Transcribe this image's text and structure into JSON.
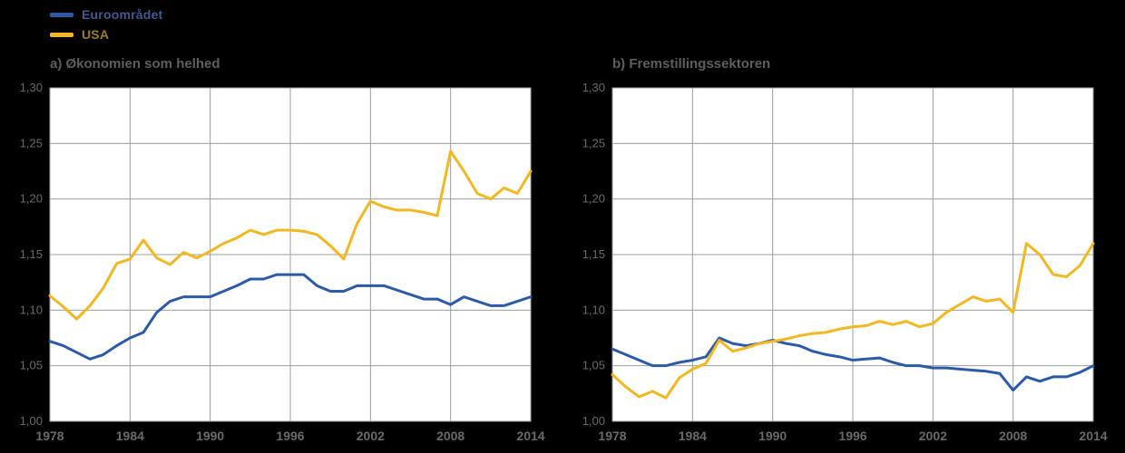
{
  "style": {
    "background": "#000000",
    "plot_bg": "#ffffff",
    "grid_color": "#9c9c9c",
    "tick_color": "#6a6a6a",
    "title_color": "#5e5e5e",
    "line_width": 3
  },
  "legend": {
    "items": [
      {
        "label": "Euroområdet",
        "color": "#2b5aa8",
        "label_color": "#44598c"
      },
      {
        "label": "USA",
        "color": "#f3b71f",
        "label_color": "#9c7f1f"
      }
    ]
  },
  "chart_data": [
    {
      "type": "line",
      "title": "a) Økonomien som helhed",
      "x": [
        1978,
        1979,
        1980,
        1981,
        1982,
        1983,
        1984,
        1985,
        1986,
        1987,
        1988,
        1989,
        1990,
        1991,
        1992,
        1993,
        1994,
        1995,
        1996,
        1997,
        1998,
        1999,
        2000,
        2001,
        2002,
        2003,
        2004,
        2005,
        2006,
        2007,
        2008,
        2009,
        2010,
        2011,
        2012,
        2013,
        2014
      ],
      "series": [
        {
          "name": "Euroområdet",
          "color": "#2b5aa8",
          "values": [
            1.072,
            1.068,
            1.062,
            1.056,
            1.06,
            1.068,
            1.075,
            1.08,
            1.098,
            1.108,
            1.112,
            1.112,
            1.112,
            1.117,
            1.122,
            1.128,
            1.128,
            1.132,
            1.132,
            1.132,
            1.122,
            1.117,
            1.117,
            1.122,
            1.122,
            1.122,
            1.118,
            1.114,
            1.11,
            1.11,
            1.105,
            1.112,
            1.108,
            1.104,
            1.104,
            1.108,
            1.112
          ]
        },
        {
          "name": "USA",
          "color": "#f3b71f",
          "values": [
            1.113,
            1.103,
            1.092,
            1.104,
            1.12,
            1.142,
            1.146,
            1.163,
            1.147,
            1.141,
            1.152,
            1.147,
            1.153,
            1.16,
            1.165,
            1.172,
            1.168,
            1.172,
            1.172,
            1.171,
            1.168,
            1.158,
            1.146,
            1.178,
            1.198,
            1.193,
            1.19,
            1.19,
            1.188,
            1.185,
            1.243,
            1.225,
            1.205,
            1.2,
            1.21,
            1.205,
            1.225
          ]
        }
      ],
      "ylim": [
        1.0,
        1.3
      ],
      "yticks": [
        1.0,
        1.05,
        1.1,
        1.15,
        1.2,
        1.25,
        1.3
      ],
      "ytick_labels": [
        "1,00",
        "1,05",
        "1,10",
        "1,15",
        "1,20",
        "1,25",
        "1,30"
      ],
      "xticks": [
        1978,
        1984,
        1990,
        1996,
        2002,
        2008,
        2014
      ],
      "xtick_labels": [
        "1978",
        "1984",
        "1990",
        "1996",
        "2002",
        "2008",
        "2014"
      ],
      "grid": true,
      "legend_position": "top-left-of-figure"
    },
    {
      "type": "line",
      "title": "b) Fremstillingssektoren",
      "x": [
        1978,
        1979,
        1980,
        1981,
        1982,
        1983,
        1984,
        1985,
        1986,
        1987,
        1988,
        1989,
        1990,
        1991,
        1992,
        1993,
        1994,
        1995,
        1996,
        1997,
        1998,
        1999,
        2000,
        2001,
        2002,
        2003,
        2004,
        2005,
        2006,
        2007,
        2008,
        2009,
        2010,
        2011,
        2012,
        2013,
        2014
      ],
      "series": [
        {
          "name": "Euroområdet",
          "color": "#2b5aa8",
          "values": [
            1.065,
            1.06,
            1.055,
            1.05,
            1.05,
            1.053,
            1.055,
            1.058,
            1.075,
            1.07,
            1.068,
            1.07,
            1.073,
            1.07,
            1.068,
            1.063,
            1.06,
            1.058,
            1.055,
            1.056,
            1.057,
            1.053,
            1.05,
            1.05,
            1.048,
            1.048,
            1.047,
            1.046,
            1.045,
            1.043,
            1.028,
            1.04,
            1.036,
            1.04,
            1.04,
            1.044,
            1.05
          ]
        },
        {
          "name": "USA",
          "color": "#f3b71f",
          "values": [
            1.042,
            1.031,
            1.022,
            1.027,
            1.021,
            1.039,
            1.047,
            1.052,
            1.073,
            1.063,
            1.066,
            1.07,
            1.072,
            1.074,
            1.077,
            1.079,
            1.08,
            1.083,
            1.085,
            1.086,
            1.09,
            1.087,
            1.09,
            1.085,
            1.088,
            1.098,
            1.105,
            1.112,
            1.108,
            1.11,
            1.098,
            1.16,
            1.15,
            1.132,
            1.13,
            1.14,
            1.16
          ]
        }
      ],
      "ylim": [
        1.0,
        1.3
      ],
      "yticks": [
        1.0,
        1.05,
        1.1,
        1.15,
        1.2,
        1.25,
        1.3
      ],
      "ytick_labels": [
        "1,00",
        "1,05",
        "1,10",
        "1,15",
        "1,20",
        "1,25",
        "1,30"
      ],
      "xticks": [
        1978,
        1984,
        1990,
        1996,
        2002,
        2008,
        2014
      ],
      "xtick_labels": [
        "1978",
        "1984",
        "1990",
        "1996",
        "2002",
        "2008",
        "2014"
      ],
      "grid": true,
      "legend_position": "top-left-of-figure"
    }
  ]
}
